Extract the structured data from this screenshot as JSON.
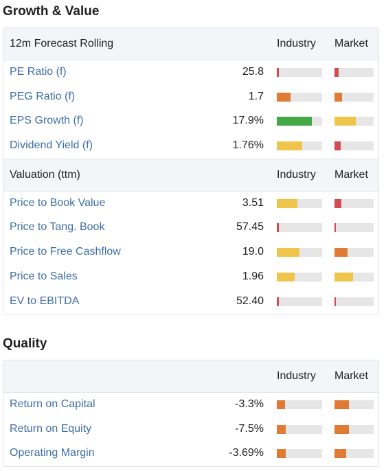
{
  "colors": {
    "red": "#d24a52",
    "orange": "#e07b35",
    "yellow": "#efc44a",
    "green": "#44a846",
    "track": "#e6e6e6",
    "link": "#3d6ea8"
  },
  "growth": {
    "title": "Growth & Value",
    "forecast_header": {
      "label": "12m Forecast Rolling",
      "industry": "Industry",
      "market": "Market"
    },
    "forecast_rows": [
      {
        "name": "PE Ratio (f)",
        "value": "25.8",
        "industry": {
          "fill": 0.05,
          "color": "red"
        },
        "market": {
          "fill": 0.1,
          "color": "red"
        }
      },
      {
        "name": "PEG Ratio (f)",
        "value": "1.7",
        "industry": {
          "fill": 0.3,
          "color": "orange"
        },
        "market": {
          "fill": 0.2,
          "color": "orange"
        }
      },
      {
        "name": "EPS Growth (f)",
        "value": "17.9%",
        "industry": {
          "fill": 0.78,
          "color": "green"
        },
        "market": {
          "fill": 0.55,
          "color": "yellow"
        }
      },
      {
        "name": "Dividend Yield (f)",
        "value": "1.76%",
        "industry": {
          "fill": 0.56,
          "color": "yellow"
        },
        "market": {
          "fill": 0.15,
          "color": "red"
        }
      }
    ],
    "valuation_header": {
      "label": "Valuation (ttm)",
      "industry": "Industry",
      "market": "Market"
    },
    "valuation_rows": [
      {
        "name": "Price to Book Value",
        "value": "3.51",
        "industry": {
          "fill": 0.45,
          "color": "yellow"
        },
        "market": {
          "fill": 0.18,
          "color": "red"
        }
      },
      {
        "name": "Price to Tang. Book",
        "value": "57.45",
        "industry": {
          "fill": 0.04,
          "color": "red"
        },
        "market": {
          "fill": 0.04,
          "color": "red"
        }
      },
      {
        "name": "Price to Free Cashflow",
        "value": "19.0",
        "industry": {
          "fill": 0.5,
          "color": "yellow"
        },
        "market": {
          "fill": 0.34,
          "color": "orange"
        }
      },
      {
        "name": "Price to Sales",
        "value": "1.96",
        "industry": {
          "fill": 0.4,
          "color": "yellow"
        },
        "market": {
          "fill": 0.48,
          "color": "yellow"
        }
      },
      {
        "name": "EV to EBITDA",
        "value": "52.40",
        "industry": {
          "fill": 0.04,
          "color": "red"
        },
        "market": {
          "fill": 0.04,
          "color": "red"
        }
      }
    ]
  },
  "quality": {
    "title": "Quality",
    "header": {
      "label": "",
      "industry": "Industry",
      "market": "Market"
    },
    "rows": [
      {
        "name": "Return on Capital",
        "value": "-3.3%",
        "industry": {
          "fill": 0.18,
          "color": "orange"
        },
        "market": {
          "fill": 0.36,
          "color": "orange"
        }
      },
      {
        "name": "Return on Equity",
        "value": "-7.5%",
        "industry": {
          "fill": 0.2,
          "color": "orange"
        },
        "market": {
          "fill": 0.36,
          "color": "orange"
        }
      },
      {
        "name": "Operating Margin",
        "value": "-3.69%",
        "industry": {
          "fill": 0.2,
          "color": "orange"
        },
        "market": {
          "fill": 0.3,
          "color": "orange"
        }
      }
    ]
  }
}
